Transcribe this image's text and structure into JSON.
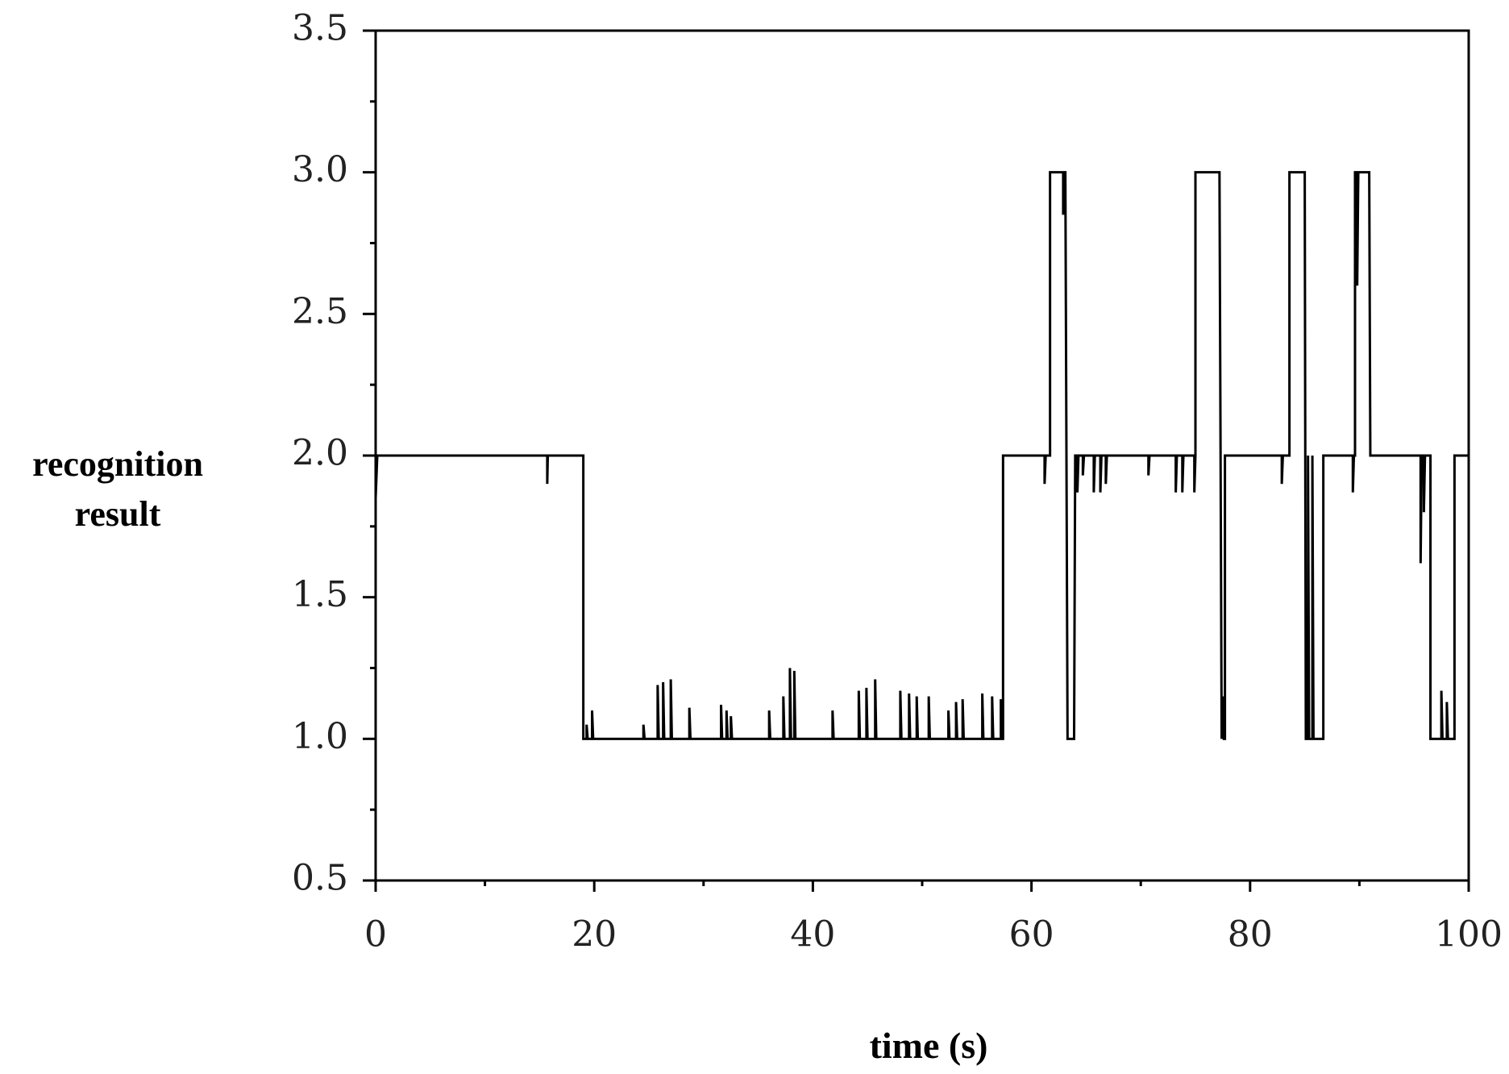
{
  "chart_data": {
    "type": "line",
    "ylabel": "recognition result",
    "xlabel": "time (s)",
    "xlim": [
      0,
      100
    ],
    "xticks": [
      0,
      20,
      40,
      60,
      80,
      100
    ],
    "xminorticks": [
      10,
      30,
      50,
      70,
      90
    ],
    "ylim": [
      0.5,
      3.5
    ],
    "yticks": [
      0.5,
      {
        "value": 1,
        "label": "1.0"
      },
      1.5,
      {
        "value": 2,
        "label": "2.0"
      },
      2.5,
      {
        "value": 3,
        "label": "3.0"
      },
      3.5
    ],
    "yminorticks": [
      0.75,
      1.25,
      1.75,
      2.25,
      2.75,
      3.25
    ],
    "grid": false,
    "series": [
      {
        "color": "#000000",
        "x": [
          0,
          0.15,
          15.7,
          15.7,
          15.75,
          19,
          19,
          19.3,
          19.3,
          19.4,
          19.8,
          19.8,
          19.9,
          24.5,
          24.5,
          24.6,
          25.8,
          25.8,
          25.9,
          26.3,
          26.3,
          26.4,
          27,
          27,
          27.1,
          28.7,
          28.7,
          28.8,
          31.6,
          31.6,
          31.7,
          32.1,
          32.1,
          32.2,
          32.5,
          32.5,
          32.6,
          36,
          36,
          36.1,
          37.3,
          37.3,
          37.4,
          37.9,
          37.9,
          38,
          38.3,
          38.3,
          38.4,
          41.8,
          41.8,
          41.9,
          44.2,
          44.2,
          44.3,
          44.9,
          44.9,
          45,
          45.7,
          45.7,
          45.8,
          48,
          48,
          48.1,
          48.8,
          48.8,
          48.9,
          49.5,
          49.5,
          49.6,
          50.6,
          50.6,
          50.7,
          52.4,
          52.4,
          52.5,
          53.1,
          53.1,
          53.2,
          53.7,
          53.7,
          53.8,
          55.5,
          55.5,
          55.6,
          56.4,
          56.4,
          56.5,
          57.2,
          57.2,
          57.3,
          57.4,
          57.4,
          61.2,
          61.2,
          61.3,
          61.7,
          61.7,
          62.9,
          62.9,
          63,
          63.1,
          63.3,
          63.9,
          64,
          64.2,
          64.2,
          64.3,
          64.7,
          64.7,
          64.8,
          65.7,
          65.7,
          65.8,
          66.3,
          66.3,
          66.4,
          66.8,
          66.8,
          66.9,
          70.7,
          70.7,
          70.8,
          73.2,
          73.2,
          73.3,
          73.8,
          73.8,
          73.9,
          74.9,
          74.9,
          75,
          75,
          77.2,
          77.4,
          77.5,
          77.6,
          77.7,
          77.7,
          82.9,
          82.9,
          83,
          83.6,
          83.6,
          85,
          85.1,
          85.3,
          85.3,
          85.4,
          85.7,
          85.7,
          85.8,
          86.7,
          86.7,
          89.4,
          89.4,
          89.5,
          89.6,
          89.6,
          89.8,
          89.8,
          89.9,
          90.9,
          91,
          95.6,
          95.6,
          95.7,
          95.9,
          95.9,
          96,
          96.5,
          96.5,
          97.5,
          97.5,
          97.6,
          98,
          98,
          98.1,
          98.7,
          98.7,
          100
        ],
        "values": [
          1.85,
          2,
          2,
          1.9,
          2,
          2,
          1,
          1,
          1.05,
          1,
          1,
          1.1,
          1,
          1,
          1.05,
          1,
          1,
          1.19,
          1,
          1,
          1.2,
          1,
          1,
          1.21,
          1,
          1,
          1.11,
          1,
          1,
          1.12,
          1,
          1,
          1.1,
          1,
          1,
          1.08,
          1,
          1,
          1.1,
          1,
          1,
          1.15,
          1,
          1,
          1.25,
          1,
          1,
          1.24,
          1,
          1,
          1.1,
          1,
          1,
          1.17,
          1,
          1,
          1.18,
          1,
          1,
          1.21,
          1,
          1,
          1.17,
          1,
          1,
          1.16,
          1,
          1,
          1.15,
          1,
          1,
          1.15,
          1,
          1,
          1.1,
          1,
          1,
          1.13,
          1,
          1,
          1.14,
          1,
          1,
          1.16,
          1,
          1,
          1.15,
          1,
          1,
          1.14,
          1,
          1,
          2,
          2,
          1.9,
          2,
          2,
          3,
          3,
          2.85,
          3,
          3,
          1,
          1,
          2,
          2,
          1.87,
          2,
          2,
          1.93,
          2,
          2,
          1.87,
          2,
          2,
          1.87,
          2,
          2,
          1.9,
          2,
          2,
          1.93,
          2,
          2,
          1.87,
          2,
          2,
          1.87,
          2,
          2,
          1.87,
          2,
          3,
          3,
          1,
          1.15,
          1,
          1,
          2,
          2,
          1.9,
          2,
          2,
          3,
          3,
          1,
          1,
          2,
          1,
          1,
          2,
          1,
          1,
          2,
          2,
          1.87,
          2,
          2,
          3,
          3,
          2.6,
          3,
          3,
          2,
          2,
          1.62,
          2,
          2,
          1.8,
          2,
          2,
          1,
          1,
          1.17,
          1,
          1,
          1.13,
          1,
          1,
          2,
          2
        ]
      }
    ]
  }
}
